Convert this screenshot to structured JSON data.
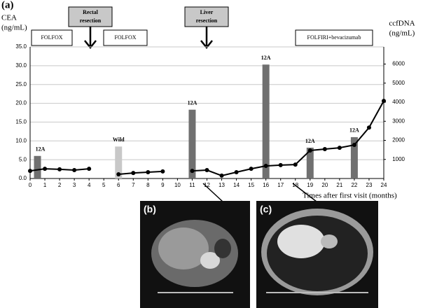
{
  "panel_label": "(a)",
  "chart_data": {
    "type": "combo",
    "ylabel": [
      "CEA",
      "(ng/mL)"
    ],
    "y2label": [
      "ccfDNA",
      "(ng/mL)"
    ],
    "xlabel": "Times after first visit (months)",
    "xlim": [
      0,
      24
    ],
    "xticks": [
      0,
      1,
      2,
      3,
      4,
      5,
      6,
      7,
      8,
      9,
      10,
      11,
      12,
      13,
      14,
      15,
      16,
      17,
      18,
      19,
      20,
      21,
      22,
      23,
      24
    ],
    "ylim": [
      0,
      35
    ],
    "yticks": [
      {
        "value": 0,
        "label": "0.0"
      },
      {
        "value": 5,
        "label": "5.0"
      },
      {
        "value": 10,
        "label": "10.0"
      },
      {
        "value": 15,
        "label": "15.0"
      },
      {
        "value": 20,
        "label": "20.0"
      },
      {
        "value": 25,
        "label": "25.0"
      },
      {
        "value": 30,
        "label": "30.0"
      },
      {
        "value": 35,
        "label": "35.0"
      }
    ],
    "y2lim": [
      0,
      6900
    ],
    "y2ticks": [
      1000,
      2000,
      3000,
      4000,
      5000,
      6000
    ],
    "grid": true,
    "series": [
      {
        "type": "bar",
        "axis": "y",
        "x": [
          0.5,
          6,
          11,
          16,
          19,
          22
        ],
        "values": [
          6.0,
          8.5,
          18.3,
          30.3,
          8.2,
          11.0
        ],
        "colors": [
          "#707070",
          "#c8c8c8",
          "#707070",
          "#707070",
          "#707070",
          "#707070"
        ],
        "bar_labels": [
          "12A",
          "Wild",
          "12A",
          "12A",
          "12A",
          "12A"
        ]
      },
      {
        "type": "line",
        "axis": "y2",
        "color": "#000000",
        "x": [
          0,
          1,
          2,
          3,
          4,
          5,
          6,
          7,
          8,
          9,
          10,
          11,
          12,
          13,
          14,
          15,
          16,
          17,
          18,
          19,
          20,
          21,
          22,
          23,
          24
        ],
        "values": [
          400,
          510,
          480,
          440,
          510,
          null,
          220,
          290,
          330,
          370,
          null,
          400,
          440,
          150,
          330,
          510,
          660,
          700,
          730,
          1470,
          1540,
          1610,
          1760,
          2670,
          4070
        ]
      }
    ],
    "annotations": {
      "treatments": [
        "FOLFOX",
        "FOLFOX",
        "FOLFIRI+bevacizumab"
      ],
      "events": [
        [
          "Rectal",
          "resection"
        ],
        [
          "Liver",
          "resection"
        ]
      ]
    }
  },
  "images": {
    "b": "(b)",
    "c": "(c)"
  }
}
